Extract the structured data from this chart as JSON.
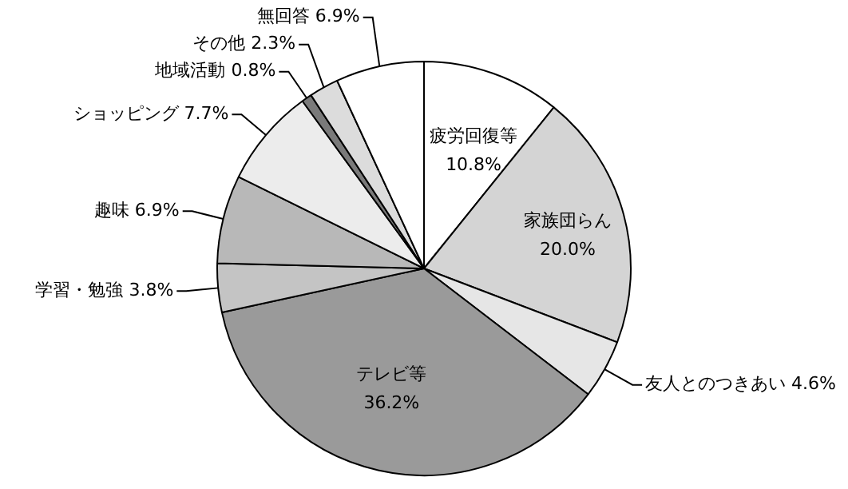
{
  "chart_data": {
    "type": "pie",
    "categories": [
      "疲労回復等",
      "家族団らん",
      "友人とのつきあい",
      "テレビ等",
      "学習・勉強",
      "趣味",
      "ショッピング",
      "地域活動",
      "その他",
      "無回答"
    ],
    "values": [
      10.8,
      20.0,
      4.6,
      36.2,
      3.8,
      6.9,
      7.7,
      0.8,
      2.3,
      6.9
    ],
    "value_labels": [
      "10.8%",
      "20.0%",
      "4.6%",
      "36.2%",
      "3.8%",
      "6.9%",
      "7.7%",
      "0.8%",
      "2.3%",
      "6.9%"
    ],
    "colors": [
      "#ffffff",
      "#d4d4d4",
      "#e6e6e6",
      "#9a9a9a",
      "#c4c4c4",
      "#b8b8b8",
      "#ececec",
      "#7a7a7a",
      "#dcdcdc",
      "#ffffff"
    ],
    "legend": false
  }
}
